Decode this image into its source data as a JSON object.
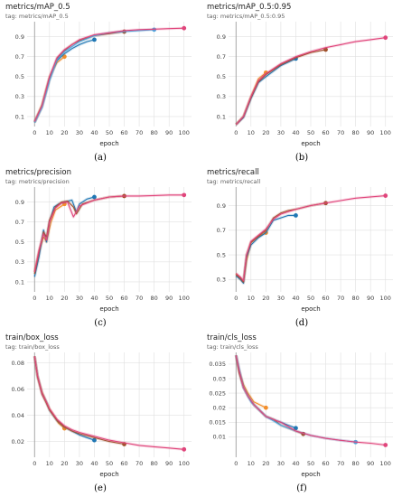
{
  "colors": {
    "orange": "#f28e2b",
    "blue": "#1f77b4",
    "brown": "#a0522d",
    "cyan": "#4aa8e0",
    "pink": "#e0457b",
    "purple": "#8e5ccf"
  },
  "chart_data": [
    {
      "type": "line",
      "title": "metrics/mAP_0.5",
      "tag": "tag: metrics/mAP_0.5",
      "caption": "(a)",
      "xlabel": "epoch",
      "xlim": [
        -5,
        105
      ],
      "ylim": [
        0,
        1.05
      ],
      "xticks": [
        0,
        10,
        20,
        30,
        40,
        50,
        60,
        70,
        80,
        90,
        100
      ],
      "yticks": [
        0.1,
        0.3,
        0.5,
        0.7,
        0.9
      ],
      "ytick_labels": [
        "0.1",
        "0.3",
        "0.5",
        "0.7",
        "0.9"
      ],
      "grid": true,
      "series": [
        {
          "color": "orange",
          "x": [
            0,
            5,
            10,
            15,
            20
          ],
          "y": [
            0.05,
            0.22,
            0.5,
            0.64,
            0.7
          ]
        },
        {
          "color": "blue",
          "x": [
            0,
            5,
            10,
            15,
            20,
            25,
            30,
            35,
            40
          ],
          "y": [
            0.04,
            0.2,
            0.48,
            0.66,
            0.73,
            0.78,
            0.82,
            0.85,
            0.87
          ]
        },
        {
          "color": "brown",
          "x": [
            0,
            5,
            10,
            15,
            20,
            25,
            30,
            40,
            50,
            60
          ],
          "y": [
            0.04,
            0.2,
            0.47,
            0.68,
            0.76,
            0.82,
            0.86,
            0.91,
            0.93,
            0.95
          ]
        },
        {
          "color": "cyan",
          "x": [
            0,
            5,
            10,
            15,
            20,
            30,
            40,
            50,
            60,
            70,
            80
          ],
          "y": [
            0.04,
            0.19,
            0.46,
            0.67,
            0.75,
            0.85,
            0.91,
            0.94,
            0.95,
            0.96,
            0.97
          ]
        },
        {
          "color": "pink",
          "x": [
            0,
            5,
            10,
            15,
            20,
            30,
            40,
            50,
            60,
            70,
            80,
            90,
            100
          ],
          "y": [
            0.05,
            0.21,
            0.5,
            0.69,
            0.77,
            0.87,
            0.92,
            0.94,
            0.96,
            0.97,
            0.975,
            0.98,
            0.985
          ]
        }
      ]
    },
    {
      "type": "line",
      "title": "metrics/mAP_0.5:0.95",
      "tag": "tag: metrics/mAP_0.5:0.95",
      "caption": "(b)",
      "xlabel": "epoch",
      "xlim": [
        -5,
        105
      ],
      "ylim": [
        0,
        1.05
      ],
      "xticks": [
        0,
        10,
        20,
        30,
        40,
        50,
        60,
        70,
        80,
        90,
        100
      ],
      "yticks": [
        0.1,
        0.3,
        0.5,
        0.7,
        0.9
      ],
      "ytick_labels": [
        "0.1",
        "0.3",
        "0.5",
        "0.7",
        "0.9"
      ],
      "grid": true,
      "series": [
        {
          "color": "orange",
          "x": [
            0,
            5,
            10,
            15,
            20
          ],
          "y": [
            0.02,
            0.1,
            0.3,
            0.48,
            0.54
          ]
        },
        {
          "color": "blue",
          "x": [
            0,
            5,
            10,
            15,
            20,
            30,
            40
          ],
          "y": [
            0.02,
            0.09,
            0.28,
            0.44,
            0.5,
            0.61,
            0.68
          ]
        },
        {
          "color": "brown",
          "x": [
            0,
            5,
            10,
            15,
            20,
            30,
            40,
            50,
            60
          ],
          "y": [
            0.02,
            0.1,
            0.29,
            0.45,
            0.52,
            0.62,
            0.69,
            0.74,
            0.77
          ]
        },
        {
          "color": "pink",
          "x": [
            0,
            5,
            10,
            15,
            20,
            30,
            40,
            50,
            60,
            70,
            80,
            90,
            100
          ],
          "y": [
            0.02,
            0.1,
            0.3,
            0.46,
            0.53,
            0.63,
            0.7,
            0.75,
            0.79,
            0.82,
            0.85,
            0.87,
            0.89
          ]
        }
      ]
    },
    {
      "type": "line",
      "title": "metrics/precision",
      "tag": "tag: metrics/precision",
      "caption": "(c)",
      "xlabel": "epoch",
      "xlim": [
        -5,
        105
      ],
      "ylim": [
        0,
        1.05
      ],
      "xticks": [
        0,
        10,
        20,
        30,
        40,
        50,
        60,
        70,
        80,
        90,
        100
      ],
      "yticks": [
        0.1,
        0.3,
        0.5,
        0.7,
        0.9
      ],
      "ytick_labels": [
        "0.1",
        "0.3",
        "0.5",
        "0.7",
        "0.9"
      ],
      "grid": true,
      "series": [
        {
          "color": "orange",
          "x": [
            0,
            3,
            6,
            8,
            11,
            14,
            18,
            20
          ],
          "y": [
            0.2,
            0.4,
            0.55,
            0.5,
            0.7,
            0.82,
            0.86,
            0.88
          ]
        },
        {
          "color": "blue",
          "x": [
            0,
            3,
            6,
            8,
            10,
            13,
            16,
            20,
            25,
            28,
            30,
            35,
            40
          ],
          "y": [
            0.15,
            0.35,
            0.62,
            0.5,
            0.7,
            0.85,
            0.88,
            0.9,
            0.92,
            0.8,
            0.88,
            0.93,
            0.95
          ]
        },
        {
          "color": "brown",
          "x": [
            0,
            3,
            6,
            8,
            10,
            14,
            18,
            22,
            26,
            28,
            32,
            40,
            50,
            60
          ],
          "y": [
            0.18,
            0.4,
            0.6,
            0.55,
            0.72,
            0.85,
            0.9,
            0.91,
            0.85,
            0.78,
            0.88,
            0.92,
            0.95,
            0.96
          ]
        },
        {
          "color": "pink",
          "x": [
            0,
            3,
            6,
            8,
            10,
            14,
            18,
            22,
            26,
            30,
            40,
            50,
            60,
            70,
            80,
            90,
            100
          ],
          "y": [
            0.2,
            0.42,
            0.58,
            0.52,
            0.7,
            0.84,
            0.89,
            0.9,
            0.75,
            0.86,
            0.92,
            0.95,
            0.96,
            0.96,
            0.965,
            0.97,
            0.97
          ]
        }
      ]
    },
    {
      "type": "line",
      "title": "metrics/recall",
      "tag": "tag: metrics/recall",
      "caption": "(d)",
      "xlabel": "epoch",
      "xlim": [
        -5,
        105
      ],
      "ylim": [
        0.2,
        1.05
      ],
      "xticks": [
        0,
        10,
        20,
        30,
        40,
        50,
        60,
        70,
        80,
        90,
        100
      ],
      "yticks": [
        0.3,
        0.5,
        0.7,
        0.9
      ],
      "ytick_labels": [
        "0.3",
        "0.5",
        "0.7",
        "0.9"
      ],
      "grid": true,
      "series": [
        {
          "color": "orange",
          "x": [
            0,
            3,
            5,
            7,
            10,
            15,
            20
          ],
          "y": [
            0.35,
            0.3,
            0.28,
            0.45,
            0.6,
            0.65,
            0.68
          ]
        },
        {
          "color": "blue",
          "x": [
            0,
            3,
            5,
            7,
            10,
            15,
            20,
            25,
            30,
            35,
            40
          ],
          "y": [
            0.33,
            0.3,
            0.27,
            0.48,
            0.58,
            0.64,
            0.68,
            0.78,
            0.8,
            0.82,
            0.82
          ]
        },
        {
          "color": "brown",
          "x": [
            0,
            3,
            5,
            7,
            10,
            15,
            20,
            25,
            30,
            35,
            40,
            50,
            60
          ],
          "y": [
            0.34,
            0.31,
            0.28,
            0.5,
            0.6,
            0.65,
            0.7,
            0.8,
            0.84,
            0.86,
            0.87,
            0.9,
            0.92
          ]
        },
        {
          "color": "pink",
          "x": [
            0,
            3,
            5,
            7,
            10,
            15,
            20,
            25,
            30,
            40,
            50,
            60,
            70,
            80,
            90,
            100
          ],
          "y": [
            0.35,
            0.32,
            0.29,
            0.5,
            0.61,
            0.66,
            0.71,
            0.79,
            0.83,
            0.87,
            0.9,
            0.92,
            0.94,
            0.96,
            0.97,
            0.98
          ]
        }
      ]
    },
    {
      "type": "line",
      "title": "train/box_loss",
      "tag": "tag: train/box_loss",
      "caption": "(e)",
      "xlabel": "epoch",
      "xlim": [
        -5,
        105
      ],
      "ylim": [
        0.008,
        0.088
      ],
      "xticks": [
        0,
        10,
        20,
        30,
        40,
        50,
        60,
        70,
        80,
        90,
        100
      ],
      "yticks": [
        0.02,
        0.04,
        0.06,
        0.08
      ],
      "ytick_labels": [
        "0.02",
        "0.04",
        "0.06",
        "0.08"
      ],
      "grid": true,
      "series": [
        {
          "color": "orange",
          "x": [
            0,
            2,
            5,
            8,
            10,
            13,
            16,
            20
          ],
          "y": [
            0.085,
            0.07,
            0.058,
            0.05,
            0.045,
            0.04,
            0.034,
            0.03
          ]
        },
        {
          "color": "blue",
          "x": [
            0,
            2,
            5,
            8,
            10,
            15,
            20,
            25,
            30,
            35,
            40
          ],
          "y": [
            0.085,
            0.07,
            0.057,
            0.05,
            0.044,
            0.036,
            0.031,
            0.028,
            0.025,
            0.023,
            0.021
          ]
        },
        {
          "color": "brown",
          "x": [
            0,
            2,
            5,
            8,
            10,
            15,
            20,
            25,
            30,
            40,
            50,
            60
          ],
          "y": [
            0.085,
            0.069,
            0.056,
            0.049,
            0.044,
            0.036,
            0.031,
            0.028,
            0.026,
            0.023,
            0.02,
            0.018
          ]
        },
        {
          "color": "pink",
          "x": [
            0,
            2,
            5,
            8,
            10,
            15,
            20,
            25,
            30,
            40,
            50,
            60,
            70,
            80,
            90,
            100
          ],
          "y": [
            0.085,
            0.07,
            0.057,
            0.05,
            0.045,
            0.037,
            0.032,
            0.029,
            0.027,
            0.024,
            0.021,
            0.019,
            0.017,
            0.016,
            0.015,
            0.014
          ]
        }
      ]
    },
    {
      "type": "line",
      "title": "train/cls_loss",
      "tag": "tag: train/cls_loss",
      "caption": "(f)",
      "xlabel": "epoch",
      "xlim": [
        -5,
        105
      ],
      "ylim": [
        0.003,
        0.039
      ],
      "xticks": [
        0,
        10,
        20,
        30,
        40,
        50,
        60,
        70,
        80,
        90,
        100
      ],
      "yticks": [
        0.01,
        0.015,
        0.02,
        0.025,
        0.03,
        0.035
      ],
      "ytick_labels": [
        "0.01",
        "0.015",
        "0.02",
        "0.025",
        "0.03",
        "0.035"
      ],
      "grid": true,
      "series": [
        {
          "color": "orange",
          "x": [
            0,
            2,
            5,
            8,
            12,
            16,
            20
          ],
          "y": [
            0.038,
            0.033,
            0.028,
            0.025,
            0.022,
            0.021,
            0.02
          ]
        },
        {
          "color": "blue",
          "x": [
            0,
            2,
            5,
            8,
            12,
            16,
            20,
            25,
            30,
            35,
            40
          ],
          "y": [
            0.038,
            0.033,
            0.027,
            0.024,
            0.021,
            0.019,
            0.017,
            0.016,
            0.015,
            0.014,
            0.013
          ]
        },
        {
          "color": "brown",
          "x": [
            0,
            2,
            5,
            8,
            12,
            16,
            20,
            25,
            30,
            35,
            40,
            45
          ],
          "y": [
            0.038,
            0.032,
            0.027,
            0.024,
            0.021,
            0.019,
            0.017,
            0.016,
            0.014,
            0.013,
            0.012,
            0.011
          ]
        },
        {
          "color": "cyan",
          "x": [
            0,
            5,
            10,
            20,
            30,
            40,
            50,
            60,
            70,
            80
          ],
          "y": [
            0.038,
            0.027,
            0.022,
            0.017,
            0.014,
            0.012,
            0.0105,
            0.0095,
            0.0088,
            0.0082
          ]
        },
        {
          "color": "pink",
          "x": [
            0,
            2,
            5,
            8,
            12,
            16,
            20,
            25,
            30,
            40,
            50,
            60,
            70,
            80,
            90,
            100
          ],
          "y": [
            0.038,
            0.033,
            0.027,
            0.024,
            0.021,
            0.019,
            0.017,
            0.016,
            0.015,
            0.012,
            0.0105,
            0.0095,
            0.0088,
            0.0082,
            0.0078,
            0.0072
          ]
        }
      ]
    }
  ]
}
